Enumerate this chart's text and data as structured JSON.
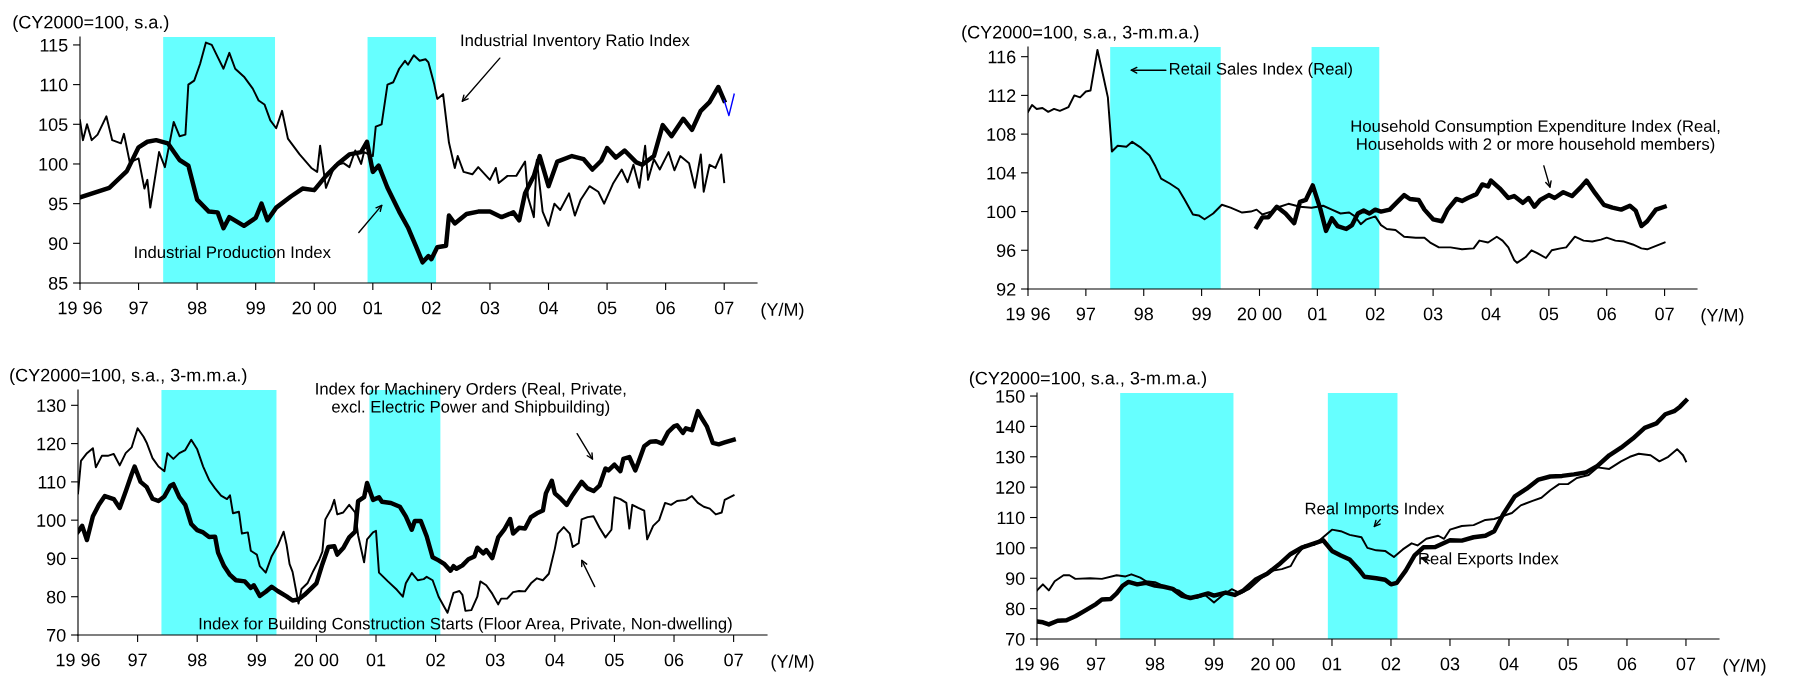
{
  "chart_data": [
    {
      "type": "line",
      "xlim": [
        1996,
        2007.56
      ],
      "ylim": [
        85,
        116
      ],
      "yticks": [
        85,
        90,
        95,
        100,
        105,
        110,
        115
      ],
      "xticks": [
        {
          "value": 1996,
          "label": "19 96"
        },
        {
          "value": 1997,
          "label": "97"
        },
        {
          "value": 1998,
          "label": "98"
        },
        {
          "value": 1999,
          "label": "99"
        },
        {
          "value": 2000,
          "label": "20 00"
        },
        {
          "value": 2001,
          "label": "01"
        },
        {
          "value": 2002,
          "label": "02"
        },
        {
          "value": 2003,
          "label": "03"
        },
        {
          "value": 2004,
          "label": "04"
        },
        {
          "value": 2005,
          "label": "05"
        },
        {
          "value": 2006,
          "label": "06"
        },
        {
          "value": 2007,
          "label": "07"
        }
      ],
      "bands": [
        {
          "axis": "x",
          "from": 1997.42,
          "to": 1999.33,
          "color": "#66ffff"
        },
        {
          "axis": "x",
          "from": 2000.91,
          "to": 2002.08,
          "color": "#66ffff"
        }
      ],
      "annotations": [
        "(CY2000=100, s.a.)",
        "(Y/M)"
      ],
      "series": [
        {
          "name": "Industrial Production Index",
          "color": "#000000",
          "x": [
            1996.0,
            1996.5,
            1996.8,
            1997.0,
            1997.15,
            1997.3,
            1997.5,
            1997.7,
            1997.85,
            1998.0,
            1998.2,
            1998.35,
            1998.45,
            1998.55,
            1998.8,
            1999.0,
            1999.1,
            1999.2,
            1999.35,
            1999.6,
            1999.8,
            2000.0,
            2000.2,
            2000.4,
            2000.6,
            2000.8,
            2000.9,
            2001.0,
            2001.1,
            2001.25,
            2001.45,
            2001.6,
            2001.75,
            2001.85,
            2001.95,
            2002.0,
            2002.1,
            2002.25,
            2002.3,
            2002.4,
            2002.6,
            2002.8,
            2003.0,
            2003.2,
            2003.4,
            2003.5,
            2003.6,
            2003.75,
            2003.85,
            2004.0,
            2004.15,
            2004.4,
            2004.6,
            2004.75,
            2004.9,
            2005.0,
            2005.15,
            2005.3,
            2005.5,
            2005.6,
            2005.8,
            2005.95,
            2006.1,
            2006.3,
            2006.45,
            2006.6,
            2006.75,
            2006.9,
            2007.0
          ],
          "values": [
            95.8,
            97,
            99.1,
            102.1,
            102.8,
            103,
            102.6,
            100.5,
            99.8,
            95.5,
            94,
            93.9,
            91.9,
            93.3,
            92.2,
            93.2,
            95,
            92.9,
            94.5,
            95.9,
            96.9,
            96.7,
            98.5,
            100,
            101.2,
            101.5,
            102.8,
            99,
            99.8,
            97,
            94,
            92,
            89.4,
            87.6,
            88.4,
            88,
            89.5,
            89.7,
            93.5,
            92.5,
            93.7,
            94,
            94,
            93.3,
            93.9,
            92.9,
            96.3,
            98.5,
            101,
            97.2,
            100.3,
            101,
            100.6,
            99.3,
            100.4,
            102,
            100.8,
            101.7,
            100.2,
            99.9,
            101,
            104.9,
            103.5,
            105.7,
            104.3,
            106.7,
            107.8,
            109.7,
            108
          ]
        },
        {
          "name": "Industrial Inventory Ratio Index",
          "color": "#000000",
          "x": [
            1996.0,
            1996.05,
            1996.12,
            1996.2,
            1996.3,
            1996.45,
            1996.55,
            1996.7,
            1996.75,
            1996.85,
            1997.0,
            1997.1,
            1997.15,
            1997.2,
            1997.35,
            1997.45,
            1997.6,
            1997.7,
            1997.8,
            1997.85,
            1997.95,
            1998.05,
            1998.15,
            1998.25,
            1998.35,
            1998.45,
            1998.55,
            1998.65,
            1998.8,
            1998.95,
            1999.05,
            1999.15,
            1999.25,
            1999.35,
            1999.45,
            1999.55,
            1999.75,
            1999.95,
            2000.05,
            2000.1,
            2000.2,
            2000.35,
            2000.5,
            2000.6,
            2000.7,
            2000.8,
            2000.85,
            2001.0,
            2001.05,
            2001.15,
            2001.25,
            2001.35,
            2001.45,
            2001.55,
            2001.6,
            2001.7,
            2001.8,
            2001.9,
            2001.95,
            2002.05,
            2002.1,
            2002.2,
            2002.3,
            2002.4,
            2002.45,
            2002.55,
            2002.7,
            2002.8,
            2003.0,
            2003.1,
            2003.15,
            2003.3,
            2003.45,
            2003.6,
            2003.65,
            2003.75,
            2003.8,
            2003.9,
            2004.0,
            2004.1,
            2004.2,
            2004.35,
            2004.45,
            2004.55,
            2004.7,
            2004.85,
            2004.95,
            2005.1,
            2005.25,
            2005.35,
            2005.45,
            2005.55,
            2005.65,
            2005.7,
            2005.8,
            2005.9,
            2006.05,
            2006.15,
            2006.25,
            2006.4,
            2006.5,
            2006.6,
            2006.65,
            2006.75,
            2006.85,
            2006.95,
            2007.0
          ],
          "values": [
            105.5,
            103,
            105,
            103,
            103.7,
            106,
            103,
            102.6,
            103.8,
            100.2,
            100.7,
            96.9,
            98,
            94.5,
            101.5,
            99.6,
            105.3,
            103.5,
            103.7,
            110,
            110.5,
            112.6,
            115.3,
            115,
            113.5,
            112,
            114,
            112,
            111,
            109.5,
            108,
            107.5,
            105.5,
            104.5,
            106.7,
            103.2,
            101.2,
            99.5,
            99,
            102.3,
            97,
            99.8,
            100.1,
            99.6,
            101.7,
            100,
            101.5,
            101,
            104.7,
            105,
            110,
            110.3,
            112,
            113,
            112.5,
            113.7,
            113,
            113.2,
            112.8,
            110,
            108.2,
            108.8,
            102.7,
            99.5,
            101,
            99,
            98.7,
            99.6,
            98,
            99.5,
            97.6,
            98.5,
            98.5,
            100.3,
            95.8,
            93.3,
            100.5,
            94,
            92.2,
            95,
            94.2,
            96.3,
            93.5,
            95.5,
            97.2,
            96.5,
            95,
            97.5,
            99.3,
            97.7,
            99.9,
            97,
            102.3,
            98,
            100.6,
            99.3,
            101.5,
            99.2,
            101,
            100.1,
            97,
            101.2,
            96.5,
            99.9,
            99.5,
            101.2,
            97.7
          ]
        },
        {
          "color": "#0000ff",
          "x": [
            2007.0,
            2007.08,
            2007.17
          ],
          "values": [
            108,
            106.1,
            108.8
          ]
        }
      ]
    },
    {
      "type": "line",
      "xlim": [
        1996,
        2007.56
      ],
      "ylim": [
        92,
        117
      ],
      "yticks": [
        92,
        96,
        100,
        104,
        108,
        112,
        116
      ],
      "xticks": [
        {
          "value": 1996,
          "label": "19 96"
        },
        {
          "value": 1997,
          "label": "97"
        },
        {
          "value": 1998,
          "label": "98"
        },
        {
          "value": 1999,
          "label": "99"
        },
        {
          "value": 2000,
          "label": "20 00"
        },
        {
          "value": 2001,
          "label": "01"
        },
        {
          "value": 2002,
          "label": "02"
        },
        {
          "value": 2003,
          "label": "03"
        },
        {
          "value": 2004,
          "label": "04"
        },
        {
          "value": 2005,
          "label": "05"
        },
        {
          "value": 2006,
          "label": "06"
        },
        {
          "value": 2007,
          "label": "07"
        }
      ],
      "bands": [
        {
          "axis": "x",
          "from": 1997.42,
          "to": 1999.33,
          "color": "#66ffff"
        },
        {
          "axis": "x",
          "from": 2000.9,
          "to": 2002.07,
          "color": "#66ffff"
        }
      ],
      "annotations": [
        "(CY2000=100, s.a., 3-m.m.a.)",
        "(Y/M)"
      ],
      "series": [
        {
          "name": "Household Consumption Expenditure Index (Real,\nHouseholds with 2 or more household members)",
          "color": "#000000",
          "x": [
            1999.95,
            2000.05,
            2000.15,
            2000.3,
            2000.45,
            2000.6,
            2000.7,
            2000.8,
            2000.92,
            2001.05,
            2001.15,
            2001.25,
            2001.35,
            2001.5,
            2001.6,
            2001.7,
            2001.8,
            2001.9,
            2002.0,
            2002.1,
            2002.25,
            2002.4,
            2002.5,
            2002.6,
            2002.75,
            2002.85,
            2003.0,
            2003.15,
            2003.25,
            2003.4,
            2003.5,
            2003.6,
            2003.75,
            2003.85,
            2003.95,
            2004.0,
            2004.15,
            2004.3,
            2004.4,
            2004.55,
            2004.65,
            2004.75,
            2004.85,
            2005.0,
            2005.1,
            2005.25,
            2005.4,
            2005.55,
            2005.65,
            2005.8,
            2005.95,
            2006.1,
            2006.25,
            2006.4,
            2006.5,
            2006.6,
            2006.7,
            2006.85,
            2007.0
          ],
          "values": [
            98.4,
            99.4,
            99.4,
            100.5,
            99.8,
            98.8,
            101,
            101.2,
            102.7,
            100.3,
            98,
            99.3,
            98.5,
            98.2,
            98.6,
            99.8,
            100.1,
            99.8,
            100.2,
            100,
            100.2,
            101.1,
            101.7,
            101.3,
            101.2,
            100.2,
            99.2,
            99,
            100.2,
            101.3,
            101.1,
            101.4,
            101.8,
            102.8,
            102.6,
            103.2,
            102.4,
            101.4,
            101.6,
            100.9,
            101.4,
            100.5,
            101.2,
            101.7,
            101.4,
            102,
            101.6,
            102.5,
            103.2,
            101.9,
            100.7,
            100.4,
            100.2,
            100.6,
            100.1,
            98.5,
            99,
            100.2,
            100.5
          ]
        },
        {
          "name": "Retail Sales Index (Real)",
          "color": "#000000",
          "x": [
            1996.0,
            1996.07,
            1996.15,
            1996.25,
            1996.35,
            1996.45,
            1996.55,
            1996.7,
            1996.8,
            1996.9,
            1997.0,
            1997.08,
            1997.2,
            1997.3,
            1997.38,
            1997.45,
            1997.55,
            1997.7,
            1997.8,
            1997.95,
            1998.1,
            1998.2,
            1998.3,
            1998.45,
            1998.6,
            1998.7,
            1998.85,
            1998.95,
            1999.05,
            1999.2,
            1999.35,
            1999.5,
            1999.7,
            1999.85,
            1999.95,
            2000.05,
            2000.2,
            2000.35,
            2000.5,
            2000.7,
            2000.9,
            2001.0,
            2001.1,
            2001.25,
            2001.4,
            2001.55,
            2001.65,
            2001.75,
            2001.85,
            2002.0,
            2002.1,
            2002.2,
            2002.35,
            2002.5,
            2002.7,
            2002.85,
            2002.95,
            2003.1,
            2003.3,
            2003.5,
            2003.7,
            2003.8,
            2003.95,
            2004.1,
            2004.2,
            2004.3,
            2004.4,
            2004.45,
            2004.6,
            2004.7,
            2004.8,
            2004.95,
            2005.05,
            2005.2,
            2005.3,
            2005.45,
            2005.6,
            2005.75,
            2005.9,
            2006.0,
            2006.15,
            2006.3,
            2006.45,
            2006.6,
            2006.7,
            2007.0
          ],
          "values": [
            110.3,
            111,
            110.6,
            110.7,
            110.3,
            110.6,
            110.4,
            110.8,
            112,
            111.8,
            112.4,
            112.5,
            116.7,
            114,
            111.8,
            106.2,
            106.8,
            106.7,
            107.2,
            106.6,
            105.8,
            104.7,
            103.4,
            102.9,
            102.3,
            101.3,
            99.7,
            99.6,
            99.2,
            99.8,
            100.7,
            100.4,
            99.9,
            100,
            100.2,
            99.7,
            100,
            100.5,
            100.8,
            100.5,
            100.4,
            100.5,
            100.6,
            100.2,
            99.8,
            99.9,
            99.5,
            98.7,
            99.2,
            99.5,
            98.6,
            98.2,
            98.1,
            97.4,
            97.3,
            97.3,
            96.8,
            96.3,
            96.3,
            96.1,
            96.2,
            97,
            96.8,
            97.4,
            97,
            96.3,
            95,
            94.7,
            95.3,
            96,
            95.7,
            95.2,
            96,
            96.2,
            96.3,
            97.4,
            97,
            96.9,
            97.1,
            97.3,
            97,
            96.9,
            96.6,
            96.2,
            96.1,
            96.8
          ]
        }
      ]
    },
    {
      "type": "line",
      "xlim": [
        1996,
        2007.56
      ],
      "ylim": [
        70,
        134
      ],
      "yticks": [
        70,
        80,
        90,
        100,
        110,
        120,
        130
      ],
      "xticks": [
        {
          "value": 1996,
          "label": "19 96"
        },
        {
          "value": 1997,
          "label": "97"
        },
        {
          "value": 1998,
          "label": "98"
        },
        {
          "value": 1999,
          "label": "99"
        },
        {
          "value": 2000,
          "label": "20 00"
        },
        {
          "value": 2001,
          "label": "01"
        },
        {
          "value": 2002,
          "label": "02"
        },
        {
          "value": 2003,
          "label": "03"
        },
        {
          "value": 2004,
          "label": "04"
        },
        {
          "value": 2005,
          "label": "05"
        },
        {
          "value": 2006,
          "label": "06"
        },
        {
          "value": 2007,
          "label": "07"
        }
      ],
      "bands": [
        {
          "axis": "x",
          "from": 1997.4,
          "to": 1999.33,
          "color": "#66ffff"
        },
        {
          "axis": "x",
          "from": 2000.89,
          "to": 2002.08,
          "color": "#66ffff"
        }
      ],
      "annotations": [
        "(CY2000=100, s.a., 3-m.m.a.)",
        "(Y/M)"
      ],
      "series": [
        {
          "name": "Index for Machinery Orders (Real, Private,\nexcl. Electric Power and Shipbuilding)",
          "color": "#000000",
          "x": [
            1996.0,
            1996.07,
            1996.15,
            1996.25,
            1996.35,
            1996.45,
            1996.6,
            1996.7,
            1996.8,
            1996.9,
            1996.95,
            1997.05,
            1997.15,
            1997.25,
            1997.35,
            1997.45,
            1997.55,
            1997.6,
            1997.7,
            1997.8,
            1997.9,
            1998.0,
            1998.1,
            1998.2,
            1998.3,
            1998.35,
            1998.45,
            1998.55,
            1998.65,
            1998.8,
            1998.9,
            1998.95,
            1999.05,
            1999.15,
            1999.25,
            1999.35,
            1999.5,
            1999.6,
            1999.7,
            1999.8,
            2000.0,
            2000.1,
            2000.2,
            2000.3,
            2000.35,
            2000.45,
            2000.55,
            2000.65,
            2000.7,
            2000.8,
            2000.85,
            2000.95,
            2001.05,
            2001.1,
            2001.25,
            2001.4,
            2001.5,
            2001.6,
            2001.65,
            2001.75,
            2001.85,
            2001.95,
            2002.05,
            2002.15,
            2002.25,
            2002.3,
            2002.35,
            2002.45,
            2002.55,
            2002.65,
            2002.7,
            2002.8,
            2002.85,
            2002.95,
            2003.05,
            2003.15,
            2003.25,
            2003.3,
            2003.4,
            2003.5,
            2003.6,
            2003.7,
            2003.8,
            2003.85,
            2003.95,
            2004.0,
            2004.1,
            2004.2,
            2004.3,
            2004.45,
            2004.55,
            2004.65,
            2004.75,
            2004.85,
            2004.9,
            2005.0,
            2005.1,
            2005.15,
            2005.25,
            2005.35,
            2005.4,
            2005.5,
            2005.6,
            2005.7,
            2005.8,
            2005.9,
            2006.0,
            2006.05,
            2006.15,
            2006.2,
            2006.3,
            2006.4,
            2006.45,
            2006.55,
            2006.65,
            2006.75,
            2006.85,
            2007.0
          ],
          "values": [
            97,
            98.5,
            94.8,
            101,
            104,
            106.3,
            105.5,
            103.2,
            107.5,
            112,
            114,
            110,
            108.7,
            105.6,
            105,
            106.2,
            109,
            109.4,
            106,
            104,
            99,
            97.4,
            96.8,
            95.6,
            95.7,
            91.5,
            88,
            85.7,
            84.3,
            84,
            82.3,
            83,
            80.2,
            81.3,
            82.6,
            81.5,
            80.1,
            79,
            79.3,
            80.5,
            83.5,
            88.5,
            93,
            93.2,
            91,
            92.7,
            95.5,
            97,
            105,
            106,
            109.7,
            105.3,
            106,
            104.8,
            104.5,
            103.5,
            101,
            97.5,
            99.8,
            99.8,
            95.8,
            90.3,
            89.5,
            88.5,
            86.8,
            88,
            87.3,
            88.2,
            89.8,
            90.5,
            92.8,
            91.3,
            92.2,
            90.1,
            95.5,
            97.5,
            100.3,
            96.5,
            98,
            97.8,
            100.8,
            101.8,
            102.5,
            107,
            110.3,
            107,
            105.6,
            104,
            106.6,
            110,
            108.3,
            107.6,
            109,
            113.5,
            113,
            114.5,
            112.8,
            116,
            116.5,
            113,
            115,
            119.3,
            120.5,
            120.6,
            120,
            123,
            124.5,
            124.8,
            122.8,
            124,
            123.5,
            128.5,
            127,
            124.5,
            120.2,
            119.8,
            120.3,
            121
          ]
        },
        {
          "name": "Index for Building Construction Starts (Floor Area, Private, Non-dwelling)",
          "color": "#000000",
          "x": [
            1996.0,
            1996.05,
            1996.15,
            1996.25,
            1996.3,
            1996.4,
            1996.5,
            1996.6,
            1996.7,
            1996.8,
            1996.9,
            1997.0,
            1997.1,
            1997.15,
            1997.25,
            1997.35,
            1997.45,
            1997.5,
            1997.6,
            1997.7,
            1997.8,
            1997.9,
            1998.0,
            1998.1,
            1998.2,
            1998.3,
            1998.4,
            1998.5,
            1998.55,
            1998.6,
            1998.7,
            1998.75,
            1998.85,
            1998.9,
            1999.0,
            1999.05,
            1999.15,
            1999.25,
            1999.35,
            1999.45,
            1999.5,
            1999.55,
            1999.6,
            1999.7,
            1999.75,
            1999.85,
            1999.95,
            2000.05,
            2000.1,
            2000.15,
            2000.25,
            2000.3,
            2000.35,
            2000.45,
            2000.55,
            2000.65,
            2000.7,
            2000.8,
            2000.85,
            2000.95,
            2001.0,
            2001.05,
            2001.2,
            2001.35,
            2001.45,
            2001.5,
            2001.6,
            2001.7,
            2001.8,
            2001.85,
            2001.95,
            2002.05,
            2002.15,
            2002.2,
            2002.3,
            2002.4,
            2002.45,
            2002.5,
            2002.6,
            2002.7,
            2002.75,
            2002.85,
            2002.95,
            2003.05,
            2003.1,
            2003.2,
            2003.3,
            2003.4,
            2003.5,
            2003.6,
            2003.7,
            2003.8,
            2003.9,
            2004.0,
            2004.05,
            2004.15,
            2004.25,
            2004.3,
            2004.4,
            2004.45,
            2004.55,
            2004.65,
            2004.75,
            2004.85,
            2004.95,
            2005.0,
            2005.1,
            2005.2,
            2005.25,
            2005.3,
            2005.4,
            2005.5,
            2005.55,
            2005.65,
            2005.75,
            2005.85,
            2005.95,
            2006.05,
            2006.2,
            2006.3,
            2006.4,
            2006.5,
            2006.6,
            2006.7,
            2006.8,
            2006.85,
            2007.0
          ],
          "values": [
            107,
            115.5,
            117.5,
            118.8,
            113.8,
            116.8,
            116.8,
            117.3,
            114.3,
            117.5,
            119,
            124,
            121.8,
            120.3,
            116.2,
            114,
            112.8,
            117.5,
            116,
            117.5,
            118.3,
            121,
            118.5,
            114,
            110.5,
            108.3,
            106.4,
            105.5,
            106.5,
            101.8,
            102.2,
            96.5,
            96.8,
            92,
            91,
            88,
            86.3,
            90.6,
            93.3,
            97,
            93.5,
            88.5,
            86.5,
            78.2,
            82,
            83.5,
            86.8,
            89.8,
            91.8,
            100.2,
            103,
            105.3,
            101.5,
            102,
            104,
            102,
            96,
            89,
            95,
            96.8,
            97.2,
            86.3,
            84,
            81.8,
            80,
            83.5,
            86.2,
            84.3,
            84.6,
            85.2,
            84.3,
            80,
            77.2,
            75.8,
            81,
            81.5,
            80.5,
            76.3,
            76.5,
            80,
            84,
            83,
            80.8,
            78,
            79.5,
            79.5,
            81.2,
            81.5,
            81.4,
            83.5,
            84.8,
            84.3,
            86,
            92.5,
            96.5,
            98.2,
            96.5,
            93,
            94,
            100.2,
            100.8,
            101,
            98,
            95.5,
            97.5,
            106,
            105.5,
            104.5,
            97.8,
            104,
            103.2,
            102.5,
            95,
            98.5,
            100,
            104.5,
            104,
            105,
            105.3,
            106.3,
            104.5,
            103.5,
            103,
            101.5,
            102,
            105.3,
            106.5
          ]
        }
      ]
    },
    {
      "type": "line",
      "xlim": [
        1996,
        2007.56
      ],
      "ylim": [
        70,
        151
      ],
      "yticks": [
        70,
        80,
        90,
        100,
        110,
        120,
        130,
        140,
        150
      ],
      "xticks": [
        {
          "value": 1996,
          "label": "19 96"
        },
        {
          "value": 1997,
          "label": "97"
        },
        {
          "value": 1998,
          "label": "98"
        },
        {
          "value": 1999,
          "label": "99"
        },
        {
          "value": 2000,
          "label": "20 00"
        },
        {
          "value": 2001,
          "label": "01"
        },
        {
          "value": 2002,
          "label": "02"
        },
        {
          "value": 2003,
          "label": "03"
        },
        {
          "value": 2004,
          "label": "04"
        },
        {
          "value": 2005,
          "label": "05"
        },
        {
          "value": 2006,
          "label": "06"
        },
        {
          "value": 2007,
          "label": "07"
        }
      ],
      "bands": [
        {
          "axis": "x",
          "from": 1997.41,
          "to": 1999.33,
          "color": "#66ffff"
        },
        {
          "axis": "x",
          "from": 2000.93,
          "to": 2002.11,
          "color": "#66ffff"
        }
      ],
      "annotations": [
        "(CY2000=100, s.a., 3-m.m.a.)",
        "(Y/M)"
      ],
      "series": [
        {
          "name": "Real Exports Index",
          "color": "#000000",
          "x": [
            1996.0,
            1996.1,
            1996.2,
            1996.35,
            1996.5,
            1996.65,
            1996.8,
            1997.0,
            1997.1,
            1997.25,
            1997.35,
            1997.45,
            1997.55,
            1997.7,
            1997.85,
            1998.0,
            1998.15,
            1998.3,
            1998.45,
            1998.6,
            1998.75,
            1998.9,
            1999.0,
            1999.2,
            1999.35,
            1999.5,
            1999.7,
            1999.9,
            2000.1,
            2000.3,
            2000.5,
            2000.7,
            2000.85,
            2001.0,
            2001.15,
            2001.3,
            2001.45,
            2001.55,
            2001.75,
            2001.9,
            2002.0,
            2002.1,
            2002.25,
            2002.4,
            2002.55,
            2002.75,
            2003.0,
            2003.2,
            2003.4,
            2003.6,
            2003.75,
            2003.9,
            2004.1,
            2004.3,
            2004.5,
            2004.7,
            2004.9,
            2005.1,
            2005.3,
            2005.5,
            2005.7,
            2005.9,
            2006.1,
            2006.3,
            2006.5,
            2006.65,
            2006.8,
            2006.9,
            2007.0
          ],
          "values": [
            75.8,
            75.5,
            74.8,
            76,
            76.2,
            77.5,
            79.2,
            81.5,
            83,
            83.2,
            85,
            87.5,
            88.8,
            88,
            88.5,
            87.6,
            87.2,
            86.5,
            84.3,
            83.5,
            84.2,
            85,
            84.3,
            85.3,
            84.5,
            86,
            89.5,
            91.5,
            94.5,
            98,
            100.2,
            101.5,
            102.5,
            99,
            97.5,
            96.2,
            93,
            90.5,
            90,
            89.5,
            88,
            88.5,
            92.5,
            97.5,
            100.2,
            100.3,
            102.5,
            102.4,
            103.5,
            104,
            105.5,
            111,
            117,
            119.5,
            122.5,
            123.5,
            123.7,
            124.2,
            124.8,
            127,
            130.5,
            133,
            136,
            139.5,
            141,
            144,
            145,
            146.5,
            148.5
          ]
        },
        {
          "name": "Real Imports Index",
          "color": "#000000",
          "x": [
            1996.0,
            1996.1,
            1996.2,
            1996.3,
            1996.45,
            1996.55,
            1996.65,
            1996.9,
            1997.1,
            1997.35,
            1997.5,
            1997.6,
            1997.75,
            1997.85,
            1998.0,
            1998.2,
            1998.4,
            1998.55,
            1998.7,
            1998.85,
            1999.0,
            1999.15,
            1999.3,
            1999.45,
            1999.6,
            1999.8,
            2000.0,
            2000.15,
            2000.3,
            2000.4,
            2000.55,
            2000.7,
            2000.85,
            2001.0,
            2001.15,
            2001.3,
            2001.5,
            2001.6,
            2001.75,
            2001.9,
            2002.05,
            2002.2,
            2002.35,
            2002.45,
            2002.6,
            2002.8,
            2002.9,
            2003.0,
            2003.2,
            2003.4,
            2003.6,
            2003.75,
            2003.9,
            2004.05,
            2004.2,
            2004.4,
            2004.55,
            2004.7,
            2004.85,
            2005.0,
            2005.15,
            2005.35,
            2005.5,
            2005.7,
            2005.9,
            2006.05,
            2006.2,
            2006.4,
            2006.55,
            2006.7,
            2006.85,
            2006.95,
            2007.0
          ],
          "values": [
            86,
            88,
            86,
            89,
            91,
            91,
            89.8,
            90,
            89.8,
            91,
            90.6,
            91.3,
            90.2,
            89,
            88.7,
            87,
            86,
            84,
            83.5,
            84.5,
            82,
            84.5,
            86.4,
            85,
            86.5,
            90,
            92.5,
            93,
            94,
            97.5,
            101,
            101,
            103.5,
            106,
            105.5,
            104.3,
            103.5,
            100,
            99.2,
            99,
            97,
            99.5,
            101.5,
            100.8,
            103,
            104,
            103,
            106,
            107.2,
            107.5,
            109.2,
            109.5,
            110.5,
            111.5,
            114,
            115.5,
            116.5,
            119,
            121,
            121,
            123,
            124,
            126.5,
            126,
            128.5,
            130,
            131,
            130.5,
            128.5,
            130,
            132.5,
            130.5,
            128.5
          ]
        }
      ]
    }
  ]
}
